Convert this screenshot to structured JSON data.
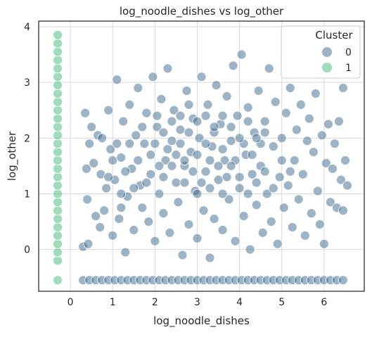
{
  "chart_data": {
    "type": "scatter",
    "title": "log_noodle_dishes vs log_other",
    "xlabel": "log_noodle_dishes",
    "ylabel": "log_other",
    "xlim": [
      -0.75,
      6.95
    ],
    "ylim": [
      -0.75,
      4.1
    ],
    "xticks": [
      0,
      1,
      2,
      3,
      4,
      5,
      6
    ],
    "yticks": [
      0,
      1,
      2,
      3,
      4
    ],
    "grid": true,
    "legend": {
      "title": "Cluster",
      "placement": "top-right"
    },
    "series": [
      {
        "name": "0",
        "color": "#3b6a8f",
        "points": [
          [
            0.3,
            0.05
          ],
          [
            0.35,
            2.45
          ],
          [
            0.38,
            1.45
          ],
          [
            0.4,
            0.9
          ],
          [
            0.42,
            0.1
          ],
          [
            0.45,
            1.9
          ],
          [
            0.5,
            2.2
          ],
          [
            0.55,
            1.55
          ],
          [
            0.6,
            0.6
          ],
          [
            0.65,
            2.05
          ],
          [
            0.7,
            0.4
          ],
          [
            0.72,
            1.35
          ],
          [
            0.75,
            2.0
          ],
          [
            0.8,
            0.7
          ],
          [
            0.85,
            1.1
          ],
          [
            0.9,
            2.5
          ],
          [
            0.95,
            1.8
          ],
          [
            1.0,
            0.25
          ],
          [
            1.05,
            1.25
          ],
          [
            1.1,
            3.05
          ],
          [
            1.15,
            0.55
          ],
          [
            1.2,
            1.65
          ],
          [
            1.25,
            2.3
          ],
          [
            1.3,
            -0.05
          ],
          [
            1.35,
            0.95
          ],
          [
            1.4,
            2.6
          ],
          [
            1.45,
            1.45
          ],
          [
            1.5,
            0.35
          ],
          [
            1.55,
            2.05
          ],
          [
            1.6,
            2.9
          ],
          [
            1.65,
            1.15
          ],
          [
            1.7,
            0.75
          ],
          [
            1.75,
            1.9
          ],
          [
            1.8,
            2.45
          ],
          [
            1.85,
            0.5
          ],
          [
            1.9,
            1.35
          ],
          [
            1.95,
            3.1
          ],
          [
            2.0,
            0.15
          ],
          [
            2.05,
            2.2
          ],
          [
            2.1,
            1.0
          ],
          [
            2.15,
            2.7
          ],
          [
            2.2,
            0.65
          ],
          [
            2.25,
            1.6
          ],
          [
            2.3,
            3.25
          ],
          [
            2.35,
            0.3
          ],
          [
            2.4,
            1.95
          ],
          [
            2.45,
            2.5
          ],
          [
            2.5,
            1.2
          ],
          [
            2.55,
            0.85
          ],
          [
            2.6,
            2.15
          ],
          [
            2.65,
            -0.1
          ],
          [
            2.7,
            1.5
          ],
          [
            2.75,
            2.85
          ],
          [
            2.8,
            0.45
          ],
          [
            2.85,
            1.75
          ],
          [
            2.9,
            2.35
          ],
          [
            2.95,
            1.05
          ],
          [
            3.0,
            0.2
          ],
          [
            3.05,
            2.0
          ],
          [
            3.1,
            3.1
          ],
          [
            3.15,
            0.7
          ],
          [
            3.2,
            1.4
          ],
          [
            3.25,
            2.6
          ],
          [
            3.3,
            -0.15
          ],
          [
            3.35,
            1.85
          ],
          [
            3.4,
            0.55
          ],
          [
            3.45,
            2.95
          ],
          [
            3.5,
            1.25
          ],
          [
            3.55,
            2.25
          ],
          [
            3.6,
            0.35
          ],
          [
            3.65,
            1.6
          ],
          [
            3.7,
            2.75
          ],
          [
            3.75,
            0.9
          ],
          [
            3.8,
            1.95
          ],
          [
            3.85,
            3.3
          ],
          [
            3.9,
            0.15
          ],
          [
            3.95,
            2.4
          ],
          [
            4.0,
            1.1
          ],
          [
            4.05,
            3.5
          ],
          [
            4.1,
            0.6
          ],
          [
            4.15,
            1.7
          ],
          [
            4.2,
            2.55
          ],
          [
            4.25,
            0.0
          ],
          [
            4.3,
            1.35
          ],
          [
            4.35,
            2.1
          ],
          [
            4.4,
            0.8
          ],
          [
            4.45,
            2.85
          ],
          [
            4.5,
            1.5
          ],
          [
            4.55,
            0.3
          ],
          [
            4.6,
            2.3
          ],
          [
            4.65,
            1.0
          ],
          [
            4.7,
            3.25
          ],
          [
            4.75,
            0.5
          ],
          [
            4.8,
            1.85
          ],
          [
            4.85,
            2.65
          ],
          [
            4.9,
            0.1
          ],
          [
            4.95,
            1.3
          ],
          [
            5.0,
            2.0
          ],
          [
            5.05,
            0.75
          ],
          [
            5.1,
            2.45
          ],
          [
            5.15,
            1.15
          ],
          [
            5.2,
            2.9
          ],
          [
            5.25,
            0.4
          ],
          [
            5.3,
            1.6
          ],
          [
            5.35,
            2.15
          ],
          [
            5.4,
            0.9
          ],
          [
            5.45,
            2.6
          ],
          [
            5.5,
            1.35
          ],
          [
            5.55,
            0.25
          ],
          [
            5.6,
            1.95
          ],
          [
            5.65,
            2.35
          ],
          [
            5.7,
            0.65
          ],
          [
            5.75,
            1.75
          ],
          [
            5.8,
            2.8
          ],
          [
            5.85,
            1.05
          ],
          [
            5.9,
            0.45
          ],
          [
            5.95,
            2.05
          ],
          [
            6.0,
            0.1
          ],
          [
            6.05,
            1.55
          ],
          [
            6.1,
            2.25
          ],
          [
            6.15,
            0.85
          ],
          [
            6.2,
            1.45
          ],
          [
            6.25,
            1.9
          ],
          [
            6.3,
            0.75
          ],
          [
            6.35,
            2.3
          ],
          [
            6.4,
            1.25
          ],
          [
            6.45,
            2.9
          ],
          [
            6.5,
            1.6
          ],
          [
            6.55,
            1.15
          ],
          [
            6.45,
            0.7
          ],
          [
            2.05,
            2.4
          ],
          [
            2.3,
            1.8
          ],
          [
            2.6,
            1.9
          ],
          [
            2.8,
            2.1
          ],
          [
            3.0,
            1.7
          ],
          [
            3.2,
            1.9
          ],
          [
            3.4,
            2.1
          ],
          [
            3.6,
            1.8
          ],
          [
            2.2,
            1.3
          ],
          [
            2.4,
            1.5
          ],
          [
            2.7,
            1.6
          ],
          [
            2.9,
            1.4
          ],
          [
            3.1,
            1.2
          ],
          [
            3.3,
            1.6
          ],
          [
            3.5,
            1.5
          ],
          [
            3.7,
            1.3
          ],
          [
            3.9,
            1.6
          ],
          [
            4.1,
            1.9
          ],
          [
            4.3,
            1.7
          ],
          [
            4.5,
            1.9
          ],
          [
            1.6,
            1.6
          ],
          [
            1.8,
            1.2
          ],
          [
            1.9,
            1.7
          ],
          [
            2.1,
            1.5
          ],
          [
            2.5,
            1.7
          ],
          [
            2.7,
            1.2
          ],
          [
            3.0,
            1.0
          ],
          [
            3.3,
            1.1
          ],
          [
            3.6,
            1.0
          ],
          [
            3.8,
            1.5
          ],
          [
            4.0,
            1.3
          ],
          [
            4.2,
            1.0
          ],
          [
            4.4,
            1.2
          ],
          [
            4.6,
            1.4
          ],
          [
            4.8,
            1.1
          ],
          [
            5.0,
            1.6
          ],
          [
            5.2,
            1.4
          ],
          [
            1.4,
            1.9
          ],
          [
            1.5,
            1.1
          ],
          [
            1.7,
            2.2
          ],
          [
            2.0,
            1.9
          ],
          [
            2.2,
            2.1
          ],
          [
            2.4,
            2.3
          ],
          [
            2.6,
            2.4
          ],
          [
            2.8,
            2.6
          ],
          [
            3.0,
            2.3
          ],
          [
            3.2,
            2.4
          ],
          [
            3.4,
            2.2
          ],
          [
            3.6,
            2.4
          ],
          [
            3.8,
            2.2
          ],
          [
            4.0,
            2.0
          ],
          [
            4.2,
            2.3
          ],
          [
            4.4,
            2.0
          ],
          [
            4.6,
            2.1
          ],
          [
            1.2,
            1.0
          ],
          [
            1.3,
            1.4
          ],
          [
            1.0,
            1.6
          ],
          [
            1.1,
            1.9
          ],
          [
            0.9,
            1.3
          ],
          [
            1.2,
            0.75
          ]
        ],
        "floor_points_y": -0.55,
        "floor_points_x": [
          0.3,
          0.45,
          0.6,
          0.75,
          0.9,
          1.05,
          1.2,
          1.35,
          1.5,
          1.65,
          1.8,
          1.95,
          2.1,
          2.25,
          2.4,
          2.55,
          2.7,
          2.85,
          3.0,
          3.15,
          3.3,
          3.45,
          3.6,
          3.75,
          3.9,
          4.05,
          4.2,
          4.35,
          4.5,
          4.65,
          4.8,
          4.95,
          5.1,
          5.25,
          5.4,
          5.55,
          5.7,
          5.85,
          6.0,
          6.15,
          6.3,
          6.45
        ]
      },
      {
        "name": "1",
        "color": "#3fbc73",
        "x": -0.3,
        "y_values": [
          -0.55,
          -0.2,
          -0.05,
          0.1,
          0.25,
          0.4,
          0.55,
          0.7,
          0.85,
          1.0,
          1.15,
          1.3,
          1.45,
          1.6,
          1.75,
          1.9,
          2.05,
          2.2,
          2.35,
          2.5,
          2.65,
          2.8,
          2.95,
          3.1,
          3.25,
          3.4,
          3.55,
          3.7,
          3.85
        ]
      }
    ]
  }
}
